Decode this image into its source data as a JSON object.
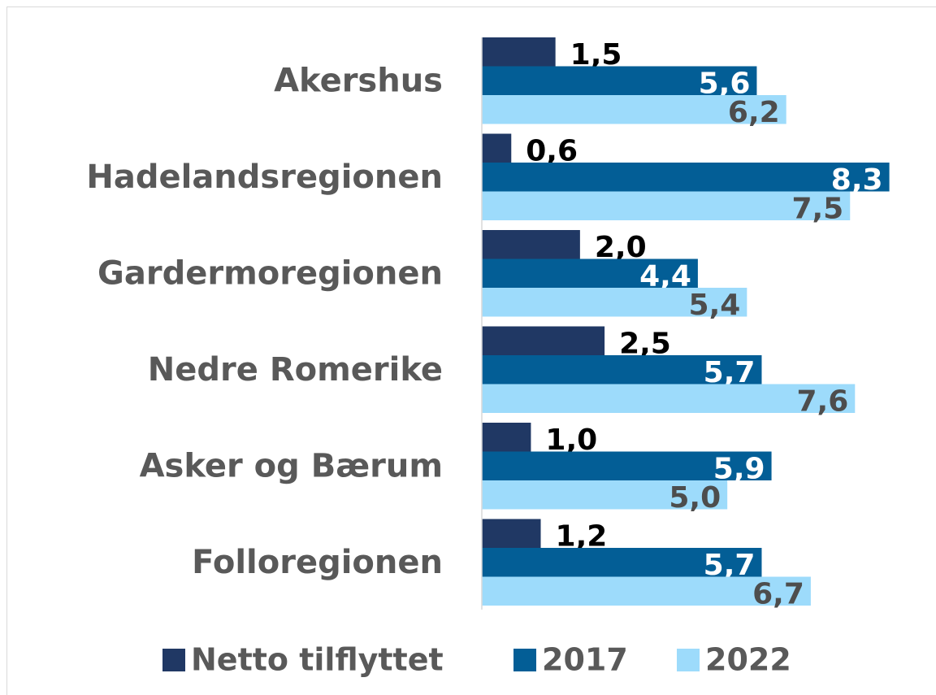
{
  "chart_data": {
    "type": "hbar",
    "categories": [
      "Akershus",
      "Hadelandsregionen",
      "Gardermoregionen",
      "Nedre Romerike",
      "Asker og Bærum",
      "Folloregionen"
    ],
    "series": [
      {
        "name": "Netto tilflyttet",
        "color": "#203864",
        "label_color": "#000000",
        "values": [
          1.5,
          0.6,
          2.0,
          2.5,
          1.0,
          1.2
        ],
        "value_labels": [
          "1,5",
          "0,6",
          "2,0",
          "2,5",
          "1,0",
          "1,2"
        ]
      },
      {
        "name": "2017",
        "color": "#035e96",
        "label_color": "#ffffff",
        "values": [
          5.6,
          8.3,
          4.4,
          5.7,
          5.9,
          5.7
        ],
        "value_labels": [
          "5,6",
          "8,3",
          "4,4",
          "5,7",
          "5,9",
          "5,7"
        ]
      },
      {
        "name": "2022",
        "color": "#9ddbfb",
        "label_color": "#4d4d4d",
        "values": [
          6.2,
          7.5,
          5.4,
          7.6,
          5.0,
          6.7
        ],
        "value_labels": [
          "6,2",
          "7,5",
          "5,4",
          "7,6",
          "5,0",
          "6,7"
        ]
      }
    ],
    "xlim": [
      0,
      9.25
    ],
    "legend": "bottom"
  }
}
